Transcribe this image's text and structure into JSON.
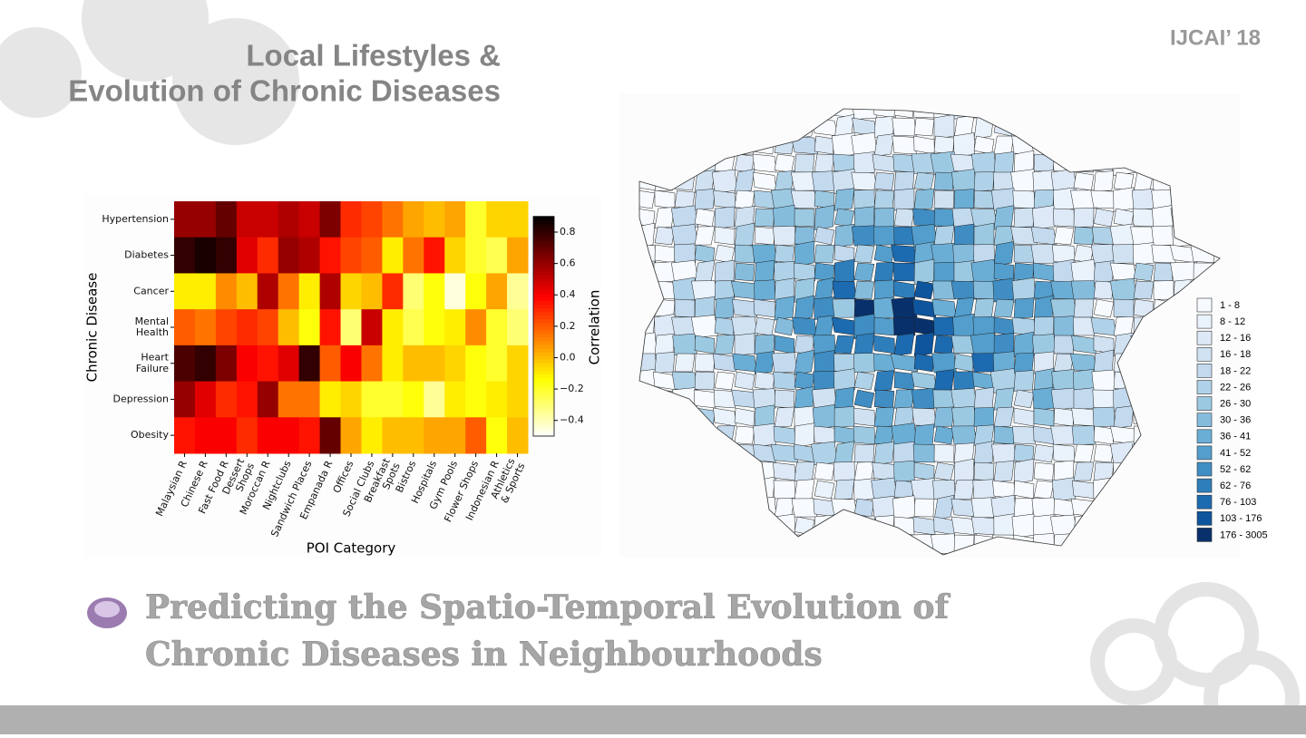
{
  "slide": {
    "title_line1": "Local Lifestyles &",
    "title_line2": "Evolution of Chronic Diseases",
    "venue": "IJCAI’ 18",
    "footer_line1": "Predicting the Spatio-Temporal Evolution of",
    "footer_line2": "Chronic Diseases in Neighbourhoods"
  },
  "chart_data": [
    {
      "type": "heatmap",
      "x_label": "POI Category",
      "y_label": "Chronic Disease",
      "colorbar_label": "Correlation",
      "colormap": "hot_r",
      "categories": [
        "Malaysian R",
        "Chinese R",
        "Fast Food R",
        "Dessert\nShops",
        "Moroccan R",
        "Nightclubs",
        "Sandwich Places",
        "Empanada R",
        "Offices",
        "Social Clubs",
        "Breakfast\nSpots",
        "Bistros",
        "Hospitals",
        "Gym Pools",
        "Flower Shops",
        "Indonesian R",
        "Athletics\n& Sports"
      ],
      "rows": [
        "Hypertension",
        "Diabetes",
        "Cancer",
        "Mental\nHealth",
        "Heart\nFailure",
        "Depression",
        "Obesity"
      ],
      "values": [
        [
          0.6,
          0.6,
          0.7,
          0.5,
          0.5,
          0.55,
          0.5,
          0.65,
          0.3,
          0.25,
          0.15,
          0.05,
          0.0,
          0.05,
          -0.2,
          -0.05,
          -0.05
        ],
        [
          0.8,
          0.85,
          0.8,
          0.45,
          0.3,
          0.6,
          0.55,
          0.35,
          0.25,
          0.2,
          -0.1,
          0.15,
          0.35,
          -0.05,
          -0.2,
          -0.25,
          0.05
        ],
        [
          -0.1,
          -0.1,
          0.1,
          0.0,
          0.55,
          0.15,
          -0.1,
          0.55,
          -0.05,
          0.0,
          0.3,
          -0.3,
          -0.15,
          -0.45,
          -0.15,
          0.05,
          -0.35
        ],
        [
          0.2,
          0.15,
          0.25,
          0.3,
          0.25,
          0.0,
          -0.15,
          0.35,
          -0.3,
          0.5,
          -0.1,
          -0.25,
          -0.15,
          -0.1,
          0.1,
          -0.2,
          -0.3
        ],
        [
          0.75,
          0.8,
          0.65,
          0.4,
          0.35,
          0.45,
          0.8,
          0.2,
          0.4,
          0.15,
          -0.1,
          0.0,
          0.0,
          -0.05,
          -0.15,
          -0.2,
          -0.05
        ],
        [
          0.6,
          0.45,
          0.3,
          0.35,
          0.6,
          0.15,
          0.15,
          -0.1,
          -0.05,
          -0.2,
          -0.2,
          -0.15,
          -0.35,
          -0.1,
          -0.15,
          -0.1,
          -0.05
        ],
        [
          0.35,
          0.4,
          0.4,
          0.3,
          0.4,
          0.4,
          0.35,
          0.7,
          0.05,
          -0.1,
          0.0,
          0.0,
          0.05,
          0.05,
          0.2,
          -0.15,
          0.0
        ]
      ],
      "clim": [
        -0.5,
        0.9
      ],
      "cticks": [
        0.8,
        0.6,
        0.4,
        0.2,
        {
          "value": 0,
          "label": "0.0"
        },
        {
          "value": -0.2,
          "label": "−0.2"
        },
        {
          "value": -0.4,
          "label": "−0.4"
        }
      ]
    },
    {
      "type": "choropleth",
      "legend": [
        "1 - 8",
        "8 - 12",
        "12 - 16",
        "16 - 18",
        "18 - 22",
        "22 - 26",
        "26 - 30",
        "30 - 36",
        "36 - 41",
        "41 - 52",
        "52 - 62",
        "62 - 76",
        "76 - 103",
        "103 - 176",
        "176 - 3005"
      ],
      "colors": [
        "#f7fbff",
        "#eaf2fb",
        "#dde9f6",
        "#d0e2f2",
        "#c2d9ee",
        "#b0d2e8",
        "#9cc9e2",
        "#85bcdc",
        "#6aaed6",
        "#539ecd",
        "#3f8dc3",
        "#2e7ebc",
        "#1c6aaf",
        "#0e559d",
        "#08306b"
      ]
    }
  ]
}
